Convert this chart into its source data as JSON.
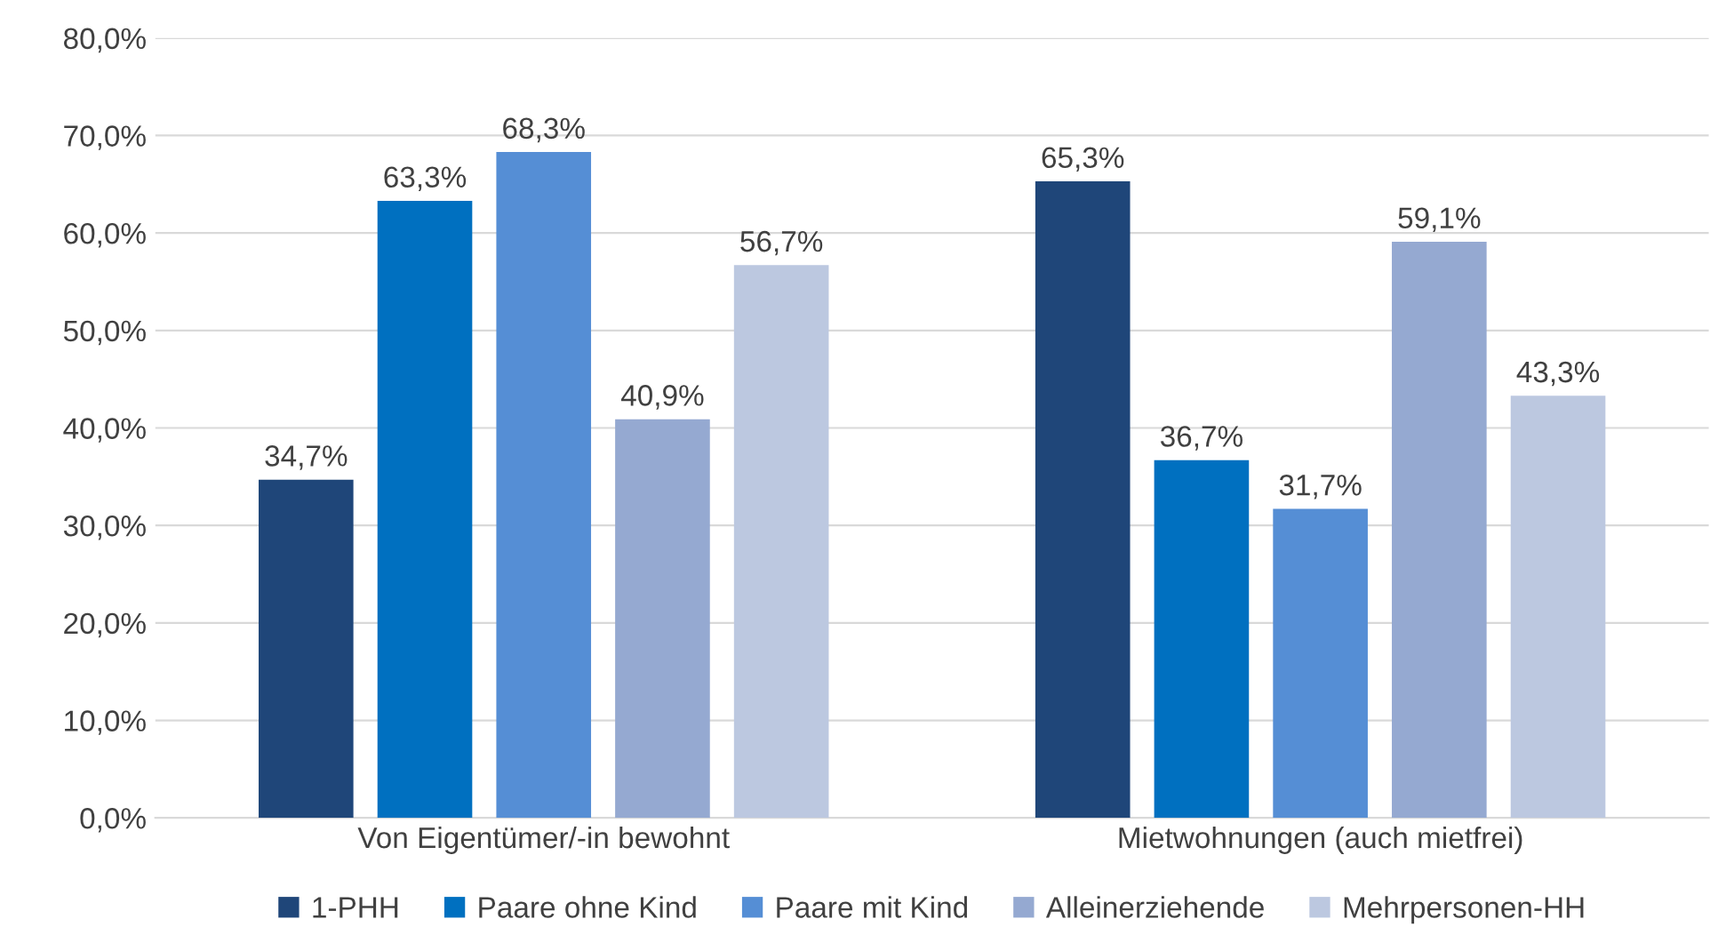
{
  "chart_data": {
    "type": "bar",
    "categories": [
      "Von Eigentümer/-in bewohnt",
      "Mietwohnungen (auch mietfrei)"
    ],
    "series": [
      {
        "name": "1-PHH",
        "color": "#1f4679",
        "values": [
          34.7,
          65.3
        ],
        "value_labels": [
          "34,7%",
          "65,3%"
        ]
      },
      {
        "name": "Paare ohne Kind",
        "color": "#0070c0",
        "values": [
          63.3,
          36.7
        ],
        "value_labels": [
          "63,3%",
          "36,7%"
        ]
      },
      {
        "name": "Paare mit Kind",
        "color": "#558ed5",
        "values": [
          68.3,
          31.7
        ],
        "value_labels": [
          "68,3%",
          "31,7%"
        ]
      },
      {
        "name": "Alleinerziehende",
        "color": "#95a9d1",
        "values": [
          40.9,
          59.1
        ],
        "value_labels": [
          "40,9%",
          "59,1%"
        ]
      },
      {
        "name": "Mehrpersonen-HH",
        "color": "#bcc8e0",
        "values": [
          56.7,
          43.3
        ],
        "value_labels": [
          "56,7%",
          "43,3%"
        ]
      }
    ],
    "ylim": [
      0,
      80
    ],
    "yticks": [
      {
        "value": 0,
        "label": "0,0%"
      },
      {
        "value": 10,
        "label": "10,0%"
      },
      {
        "value": 20,
        "label": "20,0%"
      },
      {
        "value": 30,
        "label": "30,0%"
      },
      {
        "value": 40,
        "label": "40,0%"
      },
      {
        "value": 50,
        "label": "50,0%"
      },
      {
        "value": 60,
        "label": "60,0%"
      },
      {
        "value": 70,
        "label": "70,0%"
      },
      {
        "value": 80,
        "label": "80,0%"
      }
    ],
    "grid": "y",
    "legend": "bottom"
  }
}
